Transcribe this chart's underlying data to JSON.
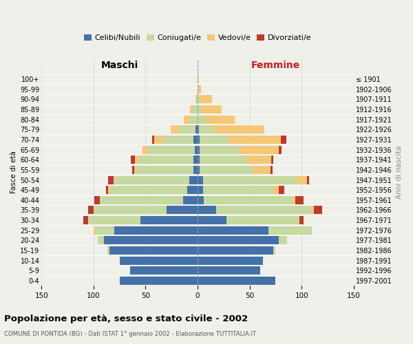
{
  "age_groups": [
    "0-4",
    "5-9",
    "10-14",
    "15-19",
    "20-24",
    "25-29",
    "30-34",
    "35-39",
    "40-44",
    "45-49",
    "50-54",
    "55-59",
    "60-64",
    "65-69",
    "70-74",
    "75-79",
    "80-84",
    "85-89",
    "90-94",
    "95-99",
    "100+"
  ],
  "birth_years": [
    "1997-2001",
    "1992-1996",
    "1987-1991",
    "1982-1986",
    "1977-1981",
    "1972-1976",
    "1967-1971",
    "1962-1966",
    "1957-1961",
    "1952-1956",
    "1947-1951",
    "1942-1946",
    "1937-1941",
    "1932-1936",
    "1927-1931",
    "1922-1926",
    "1917-1921",
    "1912-1916",
    "1907-1911",
    "1902-1906",
    "≤ 1901"
  ],
  "maschi": {
    "celibi": [
      75,
      65,
      75,
      85,
      90,
      80,
      55,
      30,
      14,
      10,
      8,
      4,
      4,
      3,
      4,
      2,
      0,
      0,
      0,
      0,
      0
    ],
    "coniugati": [
      0,
      0,
      0,
      2,
      6,
      18,
      50,
      70,
      80,
      75,
      72,
      55,
      52,
      45,
      30,
      16,
      8,
      5,
      2,
      0,
      0
    ],
    "vedovi": [
      0,
      0,
      0,
      0,
      0,
      2,
      0,
      0,
      0,
      1,
      1,
      2,
      4,
      5,
      8,
      8,
      5,
      2,
      0,
      0,
      0
    ],
    "divorziati": [
      0,
      0,
      0,
      0,
      0,
      0,
      5,
      5,
      5,
      2,
      5,
      2,
      4,
      0,
      2,
      0,
      0,
      0,
      0,
      0,
      0
    ]
  },
  "femmine": {
    "nubili": [
      75,
      60,
      63,
      73,
      78,
      68,
      28,
      18,
      6,
      5,
      5,
      2,
      2,
      2,
      2,
      1,
      0,
      0,
      0,
      0,
      0
    ],
    "coniugate": [
      0,
      0,
      0,
      2,
      8,
      42,
      70,
      92,
      85,
      68,
      90,
      50,
      45,
      38,
      28,
      15,
      8,
      3,
      2,
      0,
      0
    ],
    "vedove": [
      0,
      0,
      0,
      0,
      0,
      0,
      0,
      2,
      3,
      5,
      10,
      18,
      24,
      38,
      50,
      48,
      28,
      20,
      12,
      3,
      1
    ],
    "divorziate": [
      0,
      0,
      0,
      0,
      0,
      0,
      4,
      8,
      8,
      5,
      2,
      2,
      2,
      3,
      5,
      0,
      0,
      0,
      0,
      0,
      0
    ]
  },
  "colors": {
    "celibi_nubili": "#4472a8",
    "coniugati": "#c5d9a0",
    "vedovi": "#f5c878",
    "divorziati": "#c0392b"
  },
  "xlim": 150,
  "title": "Popolazione per età, sesso e stato civile - 2002",
  "subtitle": "COMUNE DI PONTIDA (BG) - Dati ISTAT 1° gennaio 2002 - Elaborazione TUTTITALIA.IT",
  "ylabel_left": "Fasce di età",
  "ylabel_right": "Anni di nascita",
  "xlabel_maschi": "Maschi",
  "xlabel_femmine": "Femmine",
  "bg_color": "#f0f0eb",
  "grid_color": "#cccccc",
  "legend_labels": [
    "Celibi/Nubili",
    "Coniugati/e",
    "Vedovi/e",
    "Divorziati/e"
  ]
}
